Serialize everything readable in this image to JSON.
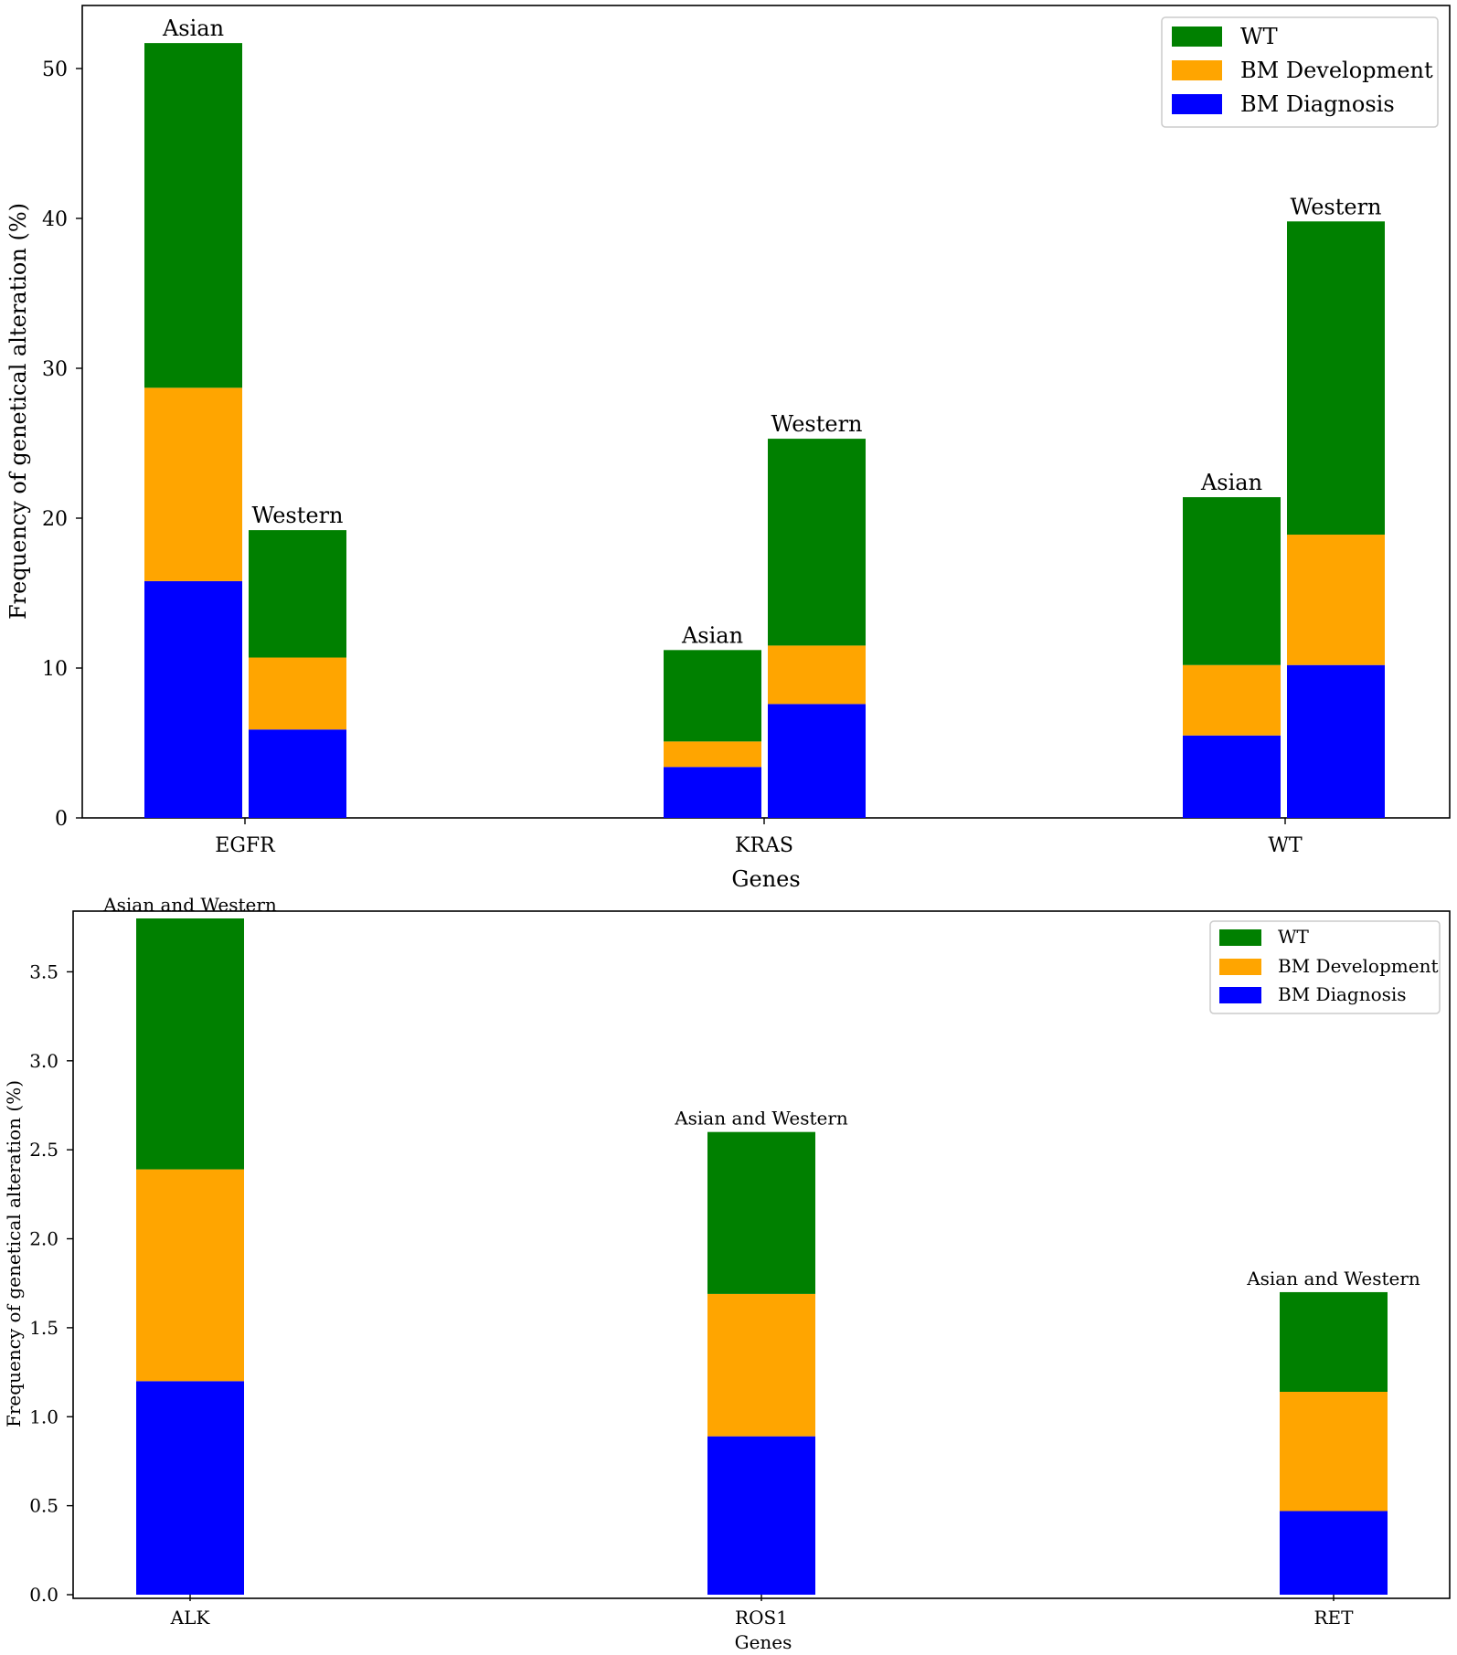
{
  "legend": [
    {
      "key": "wt",
      "label": "WT",
      "color": "#008000"
    },
    {
      "key": "bm_development",
      "label": "BM Development",
      "color": "#FFA500"
    },
    {
      "key": "bm_diagnosis",
      "label": "BM Diagnosis",
      "color": "#0000FF"
    }
  ],
  "chart_data": [
    {
      "type": "bar",
      "stacked": true,
      "title": "",
      "xlabel": "Genes",
      "ylabel": "Frequency of genetical alteration (%)",
      "ylim": [
        0,
        54
      ],
      "yticks": [
        "0",
        "10",
        "20",
        "30",
        "40",
        "50"
      ],
      "legend_position": "top-right",
      "grid": false,
      "categories": [
        "EGFR",
        "KRAS",
        "WT"
      ],
      "bars": [
        {
          "category": "EGFR",
          "label": "Asian",
          "bm_diagnosis": 15.8,
          "bm_development": 12.9,
          "wt": 23.0
        },
        {
          "category": "EGFR",
          "label": "Western",
          "bm_diagnosis": 5.9,
          "bm_development": 4.8,
          "wt": 8.5
        },
        {
          "category": "KRAS",
          "label": "Asian",
          "bm_diagnosis": 3.4,
          "bm_development": 1.7,
          "wt": 6.1
        },
        {
          "category": "KRAS",
          "label": "Western",
          "bm_diagnosis": 7.6,
          "bm_development": 3.9,
          "wt": 13.8
        },
        {
          "category": "WT",
          "label": "Asian",
          "bm_diagnosis": 5.5,
          "bm_development": 4.7,
          "wt": 11.2
        },
        {
          "category": "WT",
          "label": "Western",
          "bm_diagnosis": 10.2,
          "bm_development": 8.7,
          "wt": 20.9
        }
      ]
    },
    {
      "type": "bar",
      "stacked": true,
      "title": "",
      "xlabel": "Genes",
      "ylabel": "Frequency of genetical alteration (%)",
      "ylim": [
        0,
        3.99
      ],
      "yticks": [
        "0.0",
        "0.5",
        "1.0",
        "1.5",
        "2.0",
        "2.5",
        "3.0",
        "3.5"
      ],
      "legend_position": "top-right",
      "grid": false,
      "categories": [
        "ALK",
        "ROS1",
        "RET"
      ],
      "bars": [
        {
          "category": "ALK",
          "label": "Asian and Western",
          "bm_diagnosis": 1.2,
          "bm_development": 1.19,
          "wt": 1.41
        },
        {
          "category": "ROS1",
          "label": "Asian and Western",
          "bm_diagnosis": 0.89,
          "bm_development": 0.8,
          "wt": 0.91
        },
        {
          "category": "RET",
          "label": "Asian and Western",
          "bm_diagnosis": 0.47,
          "bm_development": 0.67,
          "wt": 0.56
        }
      ]
    }
  ]
}
